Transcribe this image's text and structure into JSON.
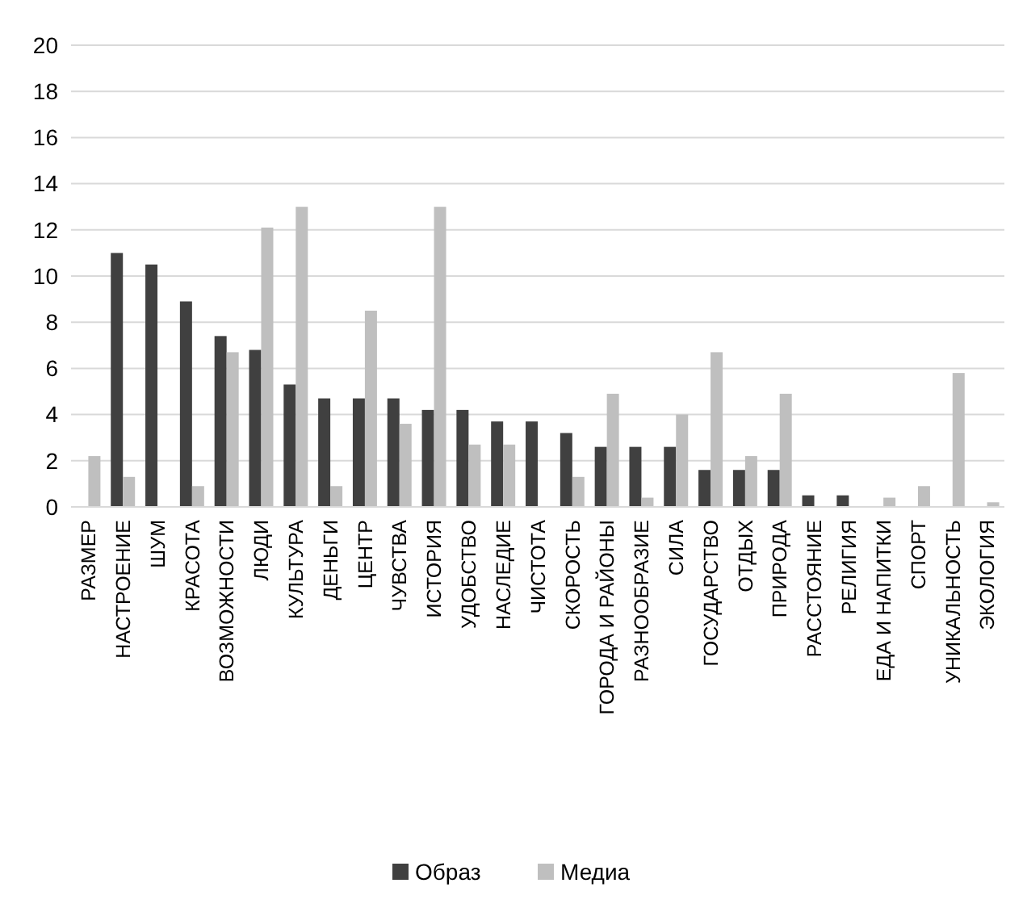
{
  "chart_data": {
    "type": "bar",
    "categories": [
      "РАЗМЕР",
      "НАСТРОЕНИЕ",
      "ШУМ",
      "КРАСОТА",
      "ВОЗМОЖНОСТИ",
      "ЛЮДИ",
      "КУЛЬТУРА",
      "ДЕНЬГИ",
      "ЦЕНТР",
      "ЧУВСТВА",
      "ИСТОРИЯ",
      "УДОБСТВО",
      "НАСЛЕДИЕ",
      "ЧИСТОТА",
      "СКОРОСТЬ",
      "ГОРОДА И РАЙОНЫ",
      "РАЗНООБРАЗИЕ",
      "СИЛА",
      "ГОСУДАРСТВО",
      "ОТДЫХ",
      "ПРИРОДА",
      "РАССТОЯНИЕ",
      "РЕЛИГИЯ",
      "ЕДА И НАПИТКИ",
      "СПОРТ",
      "УНИКАЛЬНОСТЬ",
      "ЭКОЛОГИЯ"
    ],
    "series": [
      {
        "name": "Образ",
        "color": "#404040",
        "values": [
          0,
          11,
          10.5,
          8.9,
          7.4,
          6.8,
          5.3,
          4.7,
          4.7,
          4.7,
          4.2,
          4.2,
          3.7,
          3.7,
          3.2,
          2.6,
          2.6,
          2.6,
          1.6,
          1.6,
          1.6,
          0.5,
          0.5,
          0,
          0,
          0,
          0
        ]
      },
      {
        "name": "Медиа",
        "color": "#bfbfbf",
        "values": [
          2.2,
          1.3,
          0,
          0.9,
          6.7,
          12.1,
          13,
          0.9,
          8.5,
          3.6,
          13,
          2.7,
          2.7,
          0,
          1.3,
          4.9,
          0.4,
          4,
          6.7,
          2.2,
          4.9,
          0,
          0,
          0.4,
          0.9,
          5.8,
          0.2
        ]
      }
    ],
    "ylim": [
      0,
      20
    ],
    "yticks": [
      0,
      2,
      4,
      6,
      8,
      10,
      12,
      14,
      16,
      18,
      20
    ],
    "grid": "y",
    "legend": "bottom"
  }
}
